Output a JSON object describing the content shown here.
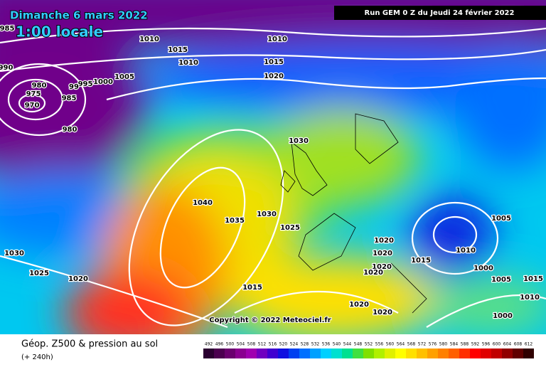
{
  "header": {
    "date": "Dimanche 6 mars 2022",
    "time": "1:00 locale",
    "run": "Run GEM 0 Z du Jeudi 24 février 2022"
  },
  "isobar_labels": [
    985,
    990,
    1010,
    1015,
    1010,
    1010,
    1015,
    1020,
    1005,
    1000,
    995,
    99,
    980,
    975,
    985,
    970,
    980,
    1030,
    1040,
    1035,
    1030,
    1025,
    1030,
    1025,
    1020,
    1015,
    1020,
    1020,
    1020,
    1020,
    1015,
    1010,
    1005,
    1000,
    1005,
    1015,
    1010,
    1020,
    1020,
    1000
  ],
  "copyright": "Copyright © 2022 Meteociel.fr",
  "footer": {
    "title": "Géop. Z500 & pression au sol",
    "lead": "(+ 240h)"
  },
  "scale": {
    "values": [
      492,
      496,
      500,
      504,
      508,
      512,
      516,
      520,
      524,
      528,
      532,
      536,
      540,
      544,
      548,
      552,
      556,
      560,
      564,
      568,
      572,
      576,
      580,
      584,
      588,
      592,
      596,
      600,
      604,
      608,
      612
    ],
    "colors": [
      "#2a0030",
      "#4b004f",
      "#6a006e",
      "#8a0090",
      "#a000b0",
      "#7000c0",
      "#4000d0",
      "#1010e0",
      "#0040f0",
      "#0070ff",
      "#00a0ff",
      "#00d0ff",
      "#00e0d0",
      "#00e090",
      "#40e040",
      "#80e000",
      "#b0f000",
      "#e0f000",
      "#ffff00",
      "#ffe000",
      "#ffc000",
      "#ffa000",
      "#ff8000",
      "#ff6000",
      "#ff3000",
      "#ff0000",
      "#e00000",
      "#c00000",
      "#900000",
      "#600000",
      "#300000"
    ]
  }
}
